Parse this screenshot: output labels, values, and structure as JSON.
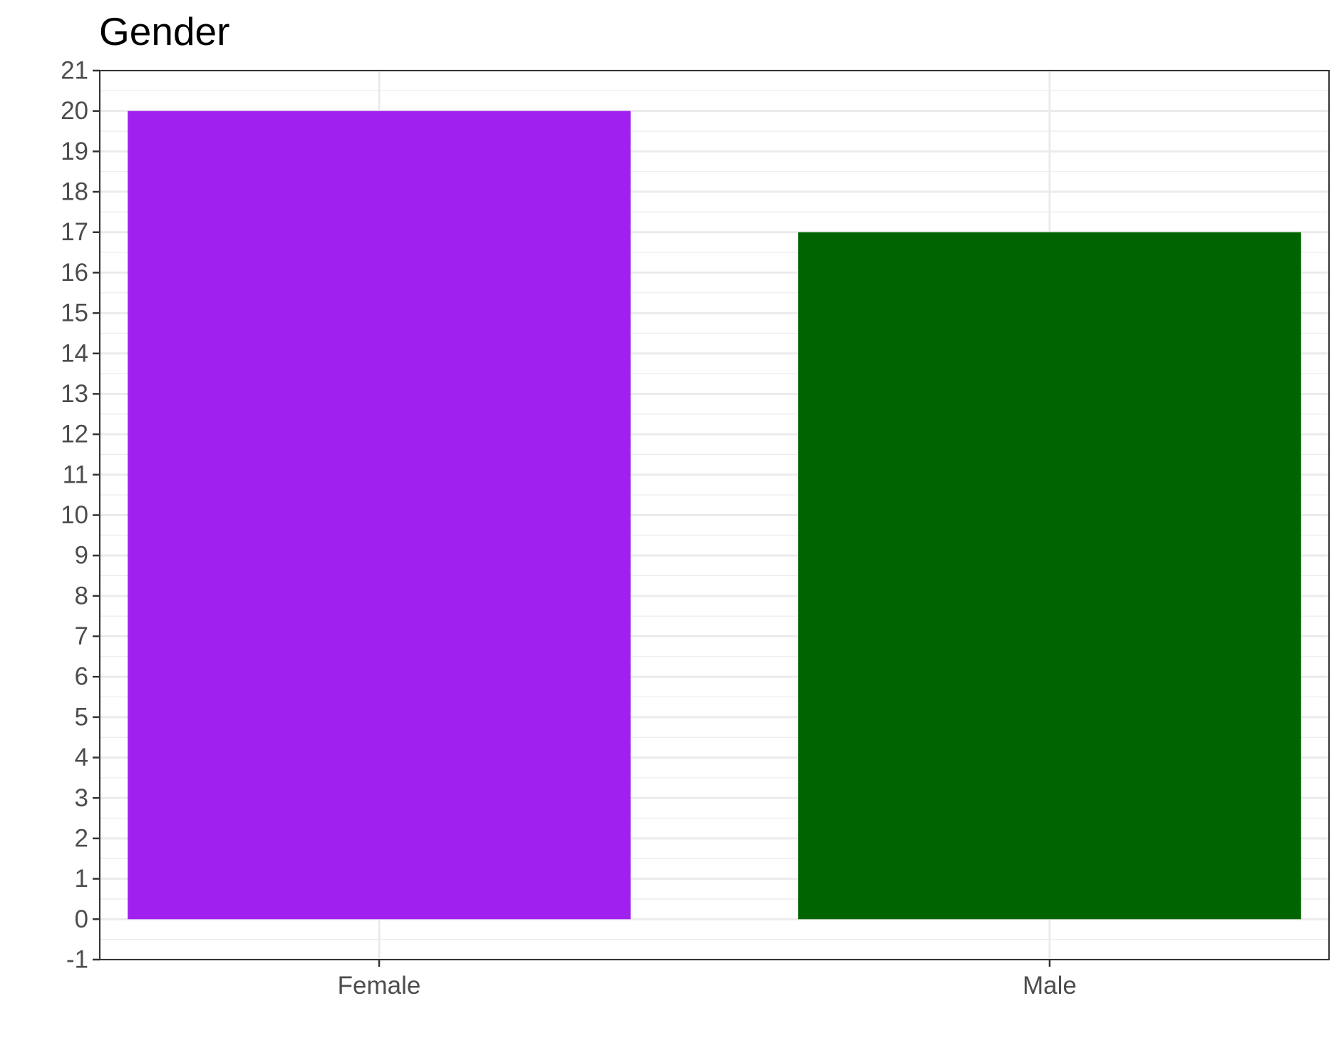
{
  "chart_data": {
    "type": "bar",
    "title": "Gender",
    "xlabel": "",
    "ylabel": "",
    "categories": [
      "Female",
      "Male"
    ],
    "values": [
      20,
      17
    ],
    "bar_colors": [
      "#A020F0",
      "#006400"
    ],
    "ylim": [
      -1,
      21
    ],
    "y_ticks": [
      -1,
      0,
      1,
      2,
      3,
      4,
      5,
      6,
      7,
      8,
      9,
      10,
      11,
      12,
      13,
      14,
      15,
      16,
      17,
      18,
      19,
      20,
      21
    ],
    "grid": true,
    "legend": "none"
  }
}
